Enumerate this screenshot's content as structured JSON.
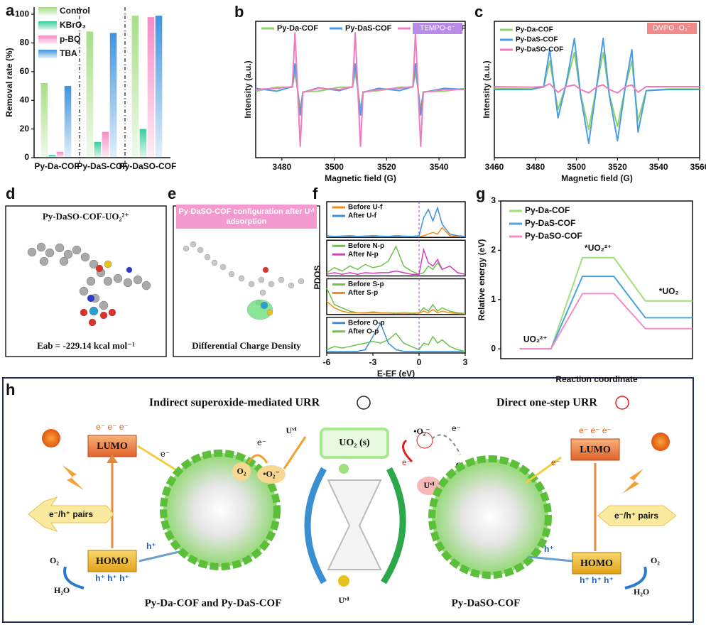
{
  "panel_labels": [
    "a",
    "b",
    "c",
    "d",
    "e",
    "f",
    "g",
    "h"
  ],
  "chart_data": [
    {
      "type": "bar",
      "ylabel": "Removal rate (%)",
      "categories": [
        "Py-Da-COF",
        "Py-DaS-COF",
        "Py-DaSO-COF"
      ],
      "series": [
        {
          "name": "Control",
          "color": "#a8dd8a",
          "values": [
            52,
            88,
            99
          ]
        },
        {
          "name": "KBrO₃",
          "color": "#35cf98",
          "values": [
            2,
            11,
            20
          ]
        },
        {
          "name": "p-BQ",
          "color": "#f58cc4",
          "values": [
            4,
            18,
            98
          ]
        },
        {
          "name": "TBA",
          "color": "#3f95de",
          "values": [
            50,
            87,
            99
          ]
        }
      ],
      "ylim": [
        0,
        105
      ],
      "yticks": [
        0,
        20,
        40,
        60,
        80,
        100
      ],
      "legend": "top-left"
    },
    {
      "type": "line",
      "xlabel": "Magnetic field (G)",
      "ylabel": "Intensity (a.u.)",
      "badge": "TEMPO-e⁻",
      "badge_color": "#b88be6",
      "x": [
        3470,
        3478,
        3484,
        3485,
        3486,
        3487,
        3488,
        3494,
        3502,
        3507,
        3508,
        3509,
        3510,
        3511,
        3517,
        3525,
        3530,
        3531,
        3532,
        3533,
        3534,
        3542,
        3550
      ],
      "series": [
        {
          "name": "Py-Da-COF",
          "color": "#8fd16a",
          "values": [
            -0.03,
            0.04,
            0.04,
            0.3,
            0,
            -0.35,
            -0.04,
            -0.03,
            0.04,
            0.04,
            0.3,
            0,
            -0.35,
            -0.04,
            -0.02,
            0.04,
            0.04,
            0.3,
            0,
            -0.35,
            -0.04,
            -0.03,
            0.02
          ]
        },
        {
          "name": "Py-DaS-COF",
          "color": "#4a9de0",
          "values": [
            0.02,
            -0.03,
            0.05,
            0.45,
            0,
            -0.45,
            -0.05,
            0.03,
            -0.02,
            0.05,
            0.45,
            0,
            -0.45,
            -0.05,
            0.02,
            -0.02,
            0.05,
            0.45,
            0,
            -0.45,
            -0.05,
            0.02,
            0
          ]
        },
        {
          "name": "Py-DaSO-COF",
          "color": "#f07cc0",
          "values": [
            0,
            0.02,
            0.05,
            1.0,
            0,
            -1.0,
            -0.05,
            0.02,
            0,
            0.05,
            1.0,
            0,
            -1.0,
            -0.05,
            0,
            0.02,
            0.05,
            1.0,
            0,
            -1.0,
            -0.05,
            0,
            0
          ]
        }
      ],
      "xlim": [
        3470,
        3550
      ],
      "xticks": [
        3480,
        3500,
        3520,
        3540
      ],
      "ylim": [
        -1.2,
        1.2
      ],
      "legend": "top"
    },
    {
      "type": "line",
      "xlabel": "Magnetic field (G)",
      "ylabel": "Intensity (a.u.)",
      "badge": "DMPO-·O₂⁻",
      "badge_color": "#f08a8a",
      "x": [
        3460,
        3478,
        3484,
        3487,
        3491,
        3495,
        3499,
        3502,
        3506,
        3510,
        3513,
        3516,
        3520,
        3524,
        3527,
        3530,
        3534,
        3545,
        3560
      ],
      "series": [
        {
          "name": "Py-Da-COF",
          "color": "#8fd16a",
          "values": [
            0.02,
            0.01,
            0.04,
            0.5,
            -0.35,
            0.08,
            0.65,
            -0.08,
            -0.7,
            0.08,
            0.65,
            -0.08,
            -0.65,
            0.08,
            0.5,
            -0.55,
            -0.02,
            0.01,
            0.01
          ]
        },
        {
          "name": "Py-DaS-COF",
          "color": "#4a9de0",
          "values": [
            0,
            0,
            0.05,
            0.7,
            -0.5,
            0.1,
            0.9,
            -0.1,
            -0.95,
            0.1,
            0.9,
            -0.1,
            -0.9,
            0.1,
            0.7,
            -0.75,
            -0.02,
            0,
            0
          ]
        },
        {
          "name": "Py-DaSO-COF",
          "color": "#f07cc0",
          "values": [
            0.05,
            0.04,
            0.05,
            0.1,
            -0.05,
            0.05,
            0.08,
            0,
            -0.06,
            0.05,
            0.08,
            0,
            -0.06,
            0.05,
            0.08,
            -0.05,
            0.05,
            0.05,
            0.05
          ]
        }
      ],
      "xlim": [
        3460,
        3560
      ],
      "xticks": [
        3460,
        3480,
        3500,
        3520,
        3540,
        3560
      ],
      "ylim": [
        -1.2,
        1.2
      ],
      "legend": "top-left"
    },
    {
      "type": "line",
      "xlabel": "E-EF (eV)",
      "ylabel": "PDOS",
      "x": [
        -6,
        -5.5,
        -5,
        -4.5,
        -4,
        -3.5,
        -3,
        -2.5,
        -2,
        -1.5,
        -1,
        -0.5,
        0,
        0.3,
        0.6,
        0.9,
        1.2,
        1.5,
        2,
        2.5,
        3
      ],
      "subplots": [
        {
          "series": [
            {
              "name": "Before U-f",
              "color": "#f08c1e",
              "values": [
                0.02,
                0.02,
                0.02,
                0.03,
                0.02,
                0.02,
                0.03,
                0.02,
                0.02,
                0.03,
                0.02,
                0.02,
                0.02,
                0.05,
                0.1,
                0.15,
                0.1,
                0.3,
                0.05,
                0.02,
                0.02
              ]
            },
            {
              "name": "After U-f",
              "color": "#3c8fd6",
              "values": [
                0.05,
                0.03,
                0.04,
                0.05,
                0.03,
                0.04,
                0.05,
                0.04,
                0.03,
                0.05,
                0.04,
                0.03,
                0.05,
                0.6,
                0.85,
                0.5,
                0.9,
                0.4,
                0.1,
                0.05,
                0.03
              ]
            }
          ]
        },
        {
          "series": [
            {
              "name": "Before N-p",
              "color": "#6cc24a",
              "values": [
                0.1,
                0.25,
                0.15,
                0.3,
                0.2,
                0.35,
                0.25,
                0.3,
                0.45,
                0.9,
                0.3,
                0.15,
                0.05,
                0.1,
                0.3,
                0.2,
                0.4,
                0.2,
                0.3,
                0.1,
                0.05
              ]
            },
            {
              "name": "After N-p",
              "color": "#d040c0",
              "values": [
                0.05,
                0.1,
                0.05,
                0.1,
                0.05,
                0.1,
                0.08,
                0.1,
                0.1,
                0.15,
                0.1,
                0.05,
                0.05,
                0.8,
                0.4,
                0.3,
                0.5,
                0.2,
                0.3,
                0.1,
                0.05
              ]
            }
          ]
        },
        {
          "series": [
            {
              "name": "Before S-p",
              "color": "#6cc24a",
              "values": [
                0.8,
                0.3,
                0.2,
                0.1,
                0.05,
                0.05,
                0.08,
                0.05,
                0.05,
                0.04,
                0.05,
                0.04,
                0.05,
                0.2,
                0.1,
                0.3,
                0.1,
                0.2,
                0.1,
                0.05,
                0.03
              ]
            },
            {
              "name": "After S-p",
              "color": "#f08c1e",
              "values": [
                0.4,
                0.2,
                0.1,
                0.05,
                0.05,
                0.04,
                0.05,
                0.04,
                0.04,
                0.03,
                0.04,
                0.03,
                0.04,
                0.1,
                0.05,
                0.15,
                0.05,
                0.1,
                0.05,
                0.03,
                0.02
              ]
            }
          ]
        },
        {
          "series": [
            {
              "name": "Before O-p",
              "color": "#3c8fd6",
              "values": [
                0.05,
                0.05,
                0.05,
                0.05,
                0.05,
                0.1,
                0.5,
                0.9,
                0.3,
                0.1,
                0.05,
                0.05,
                0.05,
                0.05,
                0.05,
                0.05,
                0.05,
                0.05,
                0.05,
                0.05,
                0.05
              ]
            },
            {
              "name": "After O-p",
              "color": "#6cc24a",
              "values": [
                0.1,
                0.2,
                0.15,
                0.2,
                0.25,
                0.3,
                0.35,
                0.3,
                0.4,
                0.6,
                0.3,
                0.2,
                0.1,
                0.3,
                0.25,
                0.5,
                0.3,
                0.4,
                0.2,
                0.1,
                0.05
              ]
            }
          ]
        }
      ],
      "xlim": [
        -6,
        3
      ],
      "xticks": [
        -6,
        -3,
        0,
        3
      ],
      "ylim": [
        0,
        1
      ],
      "legend": "top-left"
    },
    {
      "type": "step",
      "xlabel": "Reaction coordinate",
      "ylabel": "Relative energy (eV)",
      "x": [
        0,
        1,
        2,
        3,
        4,
        5.5
      ],
      "series": [
        {
          "name": "Py-Da-COF",
          "color": "#9ee07c",
          "values": [
            0,
            0,
            1.85,
            1.85,
            0.97,
            0.97
          ]
        },
        {
          "name": "Py-DaS-COF",
          "color": "#4aa3e0",
          "values": [
            0,
            0,
            1.47,
            1.47,
            0.63,
            0.63
          ]
        },
        {
          "name": "Py-DaSO-COF",
          "color": "#f58cc8",
          "values": [
            0,
            0,
            1.12,
            1.12,
            0.41,
            0.41
          ]
        }
      ],
      "annotations": [
        "UO₂²⁺",
        "*UO₂²⁺",
        "*UO₂"
      ],
      "xlim": [
        -0.6,
        5.5
      ],
      "ylim": [
        -0.2,
        3
      ],
      "yticks": [
        0,
        1,
        2,
        3
      ],
      "legend": "top-left"
    }
  ],
  "panel_d": {
    "title": "Py-DaSO-COF-UO₂²⁺",
    "energy": "Eab = -229.14 kcal mol⁻¹"
  },
  "panel_e": {
    "title": "Py-DaSO-COF configuration after Uᵛᴵ adsorption",
    "caption": "Differential Charge Density"
  },
  "panel_h": {
    "left_title": "Indirect superoxide-mediated URR",
    "right_title": "Direct one-step URR",
    "lumo": "LUMO",
    "homo": "HOMO",
    "electrons": "e⁻  e⁻  e⁻",
    "holes": "h⁺  h⁺  h⁺",
    "pairs": "e⁻/h⁺ pairs",
    "o2": "O₂",
    "h2o": "H₂O",
    "e": "e⁻",
    "h": "h⁺",
    "superoxide": "•O₂⁻",
    "u6": "Uᵛᴵ",
    "uo2s": "UO₂ (s)",
    "left_caption": "Py-Da-COF and Py-DaS-COF",
    "right_caption": "Py-DaSO-COF"
  }
}
